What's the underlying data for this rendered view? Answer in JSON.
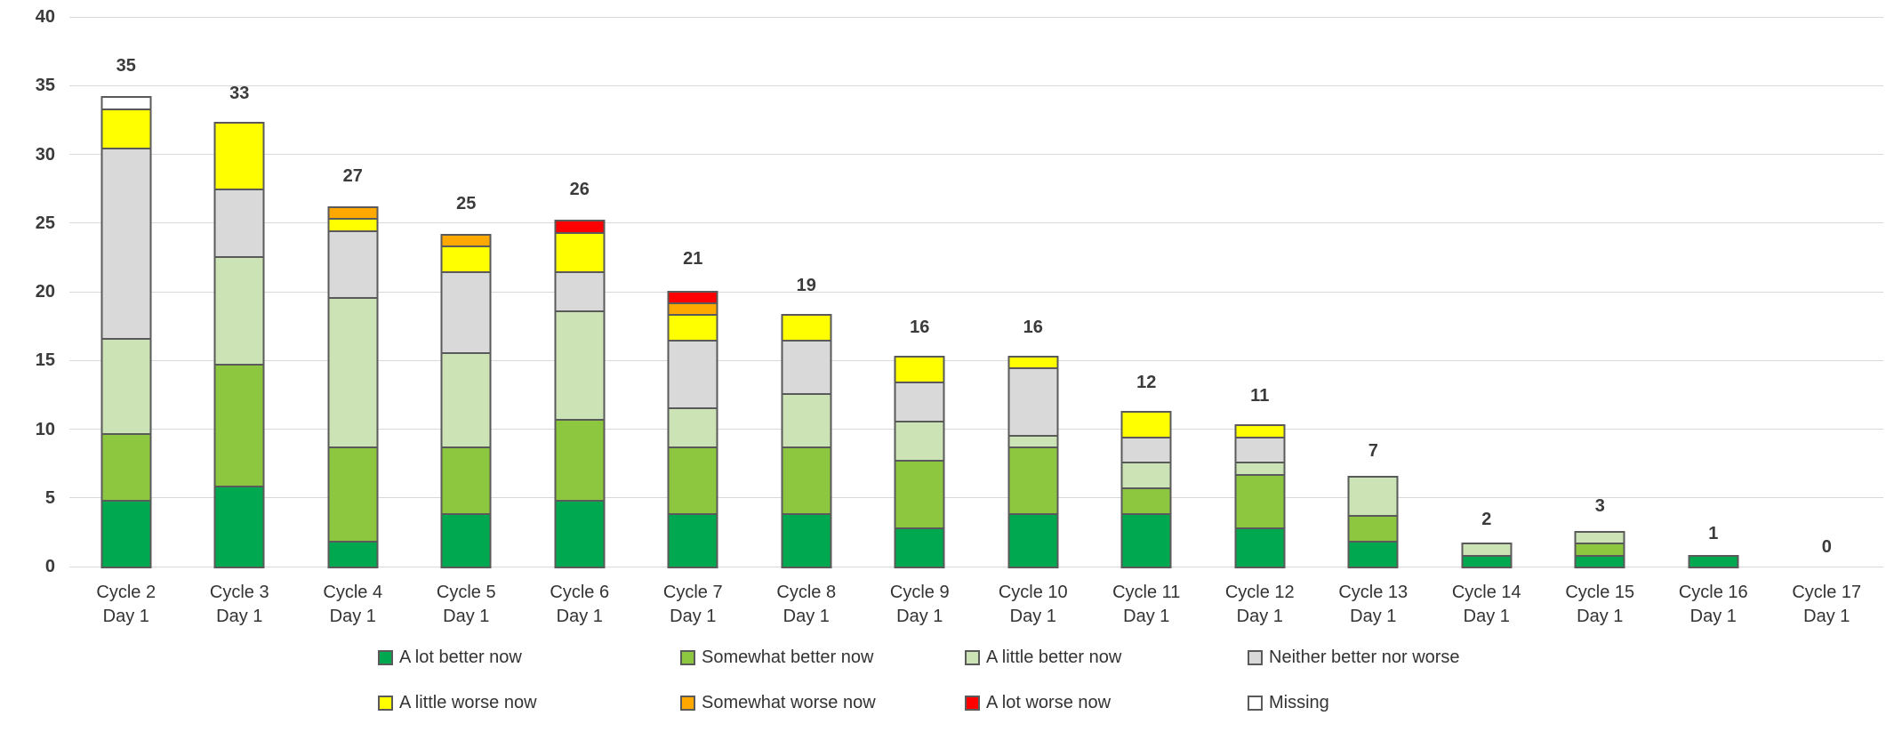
{
  "chart_data": {
    "type": "bar",
    "stacked": true,
    "title": "",
    "xlabel": "",
    "ylabel": "",
    "grid": true,
    "legend_position": "bottom",
    "y_axis": {
      "min": 0,
      "max": 40,
      "step": 5,
      "ticks": [
        0,
        5,
        10,
        15,
        20,
        25,
        30,
        35,
        40
      ]
    },
    "categories": [
      "Cycle 2\nDay 1",
      "Cycle 3\nDay 1",
      "Cycle 4\nDay 1",
      "Cycle 5\nDay 1",
      "Cycle 6\nDay 1",
      "Cycle 7\nDay 1",
      "Cycle 8\nDay 1",
      "Cycle 9\nDay 1",
      "Cycle 10\nDay 1",
      "Cycle 11\nDay 1",
      "Cycle 12\nDay 1",
      "Cycle 13\nDay 1",
      "Cycle 14\nDay 1",
      "Cycle 15\nDay 1",
      "Cycle 16\nDay 1",
      "Cycle 17\nDay 1"
    ],
    "totals": [
      35,
      33,
      27,
      25,
      26,
      21,
      19,
      16,
      16,
      12,
      11,
      7,
      2,
      3,
      1,
      0
    ],
    "series": [
      {
        "name": "A lot better now",
        "color": "#00A84F",
        "values": [
          5,
          6,
          2,
          4,
          5,
          4,
          4,
          3,
          4,
          4,
          3,
          2,
          1,
          1,
          1,
          0
        ]
      },
      {
        "name": "Somewhat better now",
        "color": "#8DC63F",
        "values": [
          5,
          9,
          7,
          5,
          6,
          5,
          5,
          5,
          5,
          2,
          4,
          2,
          0,
          1,
          0,
          0
        ]
      },
      {
        "name": "A little better now",
        "color": "#CBE3B5",
        "values": [
          7,
          8,
          11,
          7,
          8,
          3,
          4,
          3,
          1,
          2,
          1,
          3,
          1,
          1,
          0,
          0
        ]
      },
      {
        "name": "Neither better nor worse",
        "color": "#D9D9D9",
        "values": [
          14,
          5,
          5,
          6,
          3,
          5,
          4,
          3,
          5,
          2,
          2,
          0,
          0,
          0,
          0,
          0
        ]
      },
      {
        "name": "A little worse now",
        "color": "#FFFF00",
        "values": [
          3,
          5,
          1,
          2,
          3,
          2,
          2,
          2,
          1,
          2,
          1,
          0,
          0,
          0,
          0,
          0
        ]
      },
      {
        "name": "Somewhat worse now",
        "color": "#FFA800",
        "values": [
          0,
          0,
          1,
          1,
          0,
          1,
          0,
          0,
          0,
          0,
          0,
          0,
          0,
          0,
          0,
          0
        ]
      },
      {
        "name": "A lot worse now",
        "color": "#FF0000",
        "values": [
          0,
          0,
          0,
          0,
          1,
          1,
          0,
          0,
          0,
          0,
          0,
          0,
          0,
          0,
          0,
          0
        ]
      },
      {
        "name": "Missing",
        "color": "#FFFFFF",
        "values": [
          1,
          0,
          0,
          0,
          0,
          0,
          0,
          0,
          0,
          0,
          0,
          0,
          0,
          0,
          0,
          0
        ]
      }
    ],
    "legend_rows": [
      [
        "A lot better now",
        "Somewhat better now",
        "A little better now",
        "Neither better nor worse"
      ],
      [
        "A little worse now",
        "Somewhat worse now",
        "A lot worse now",
        "Missing"
      ]
    ]
  }
}
